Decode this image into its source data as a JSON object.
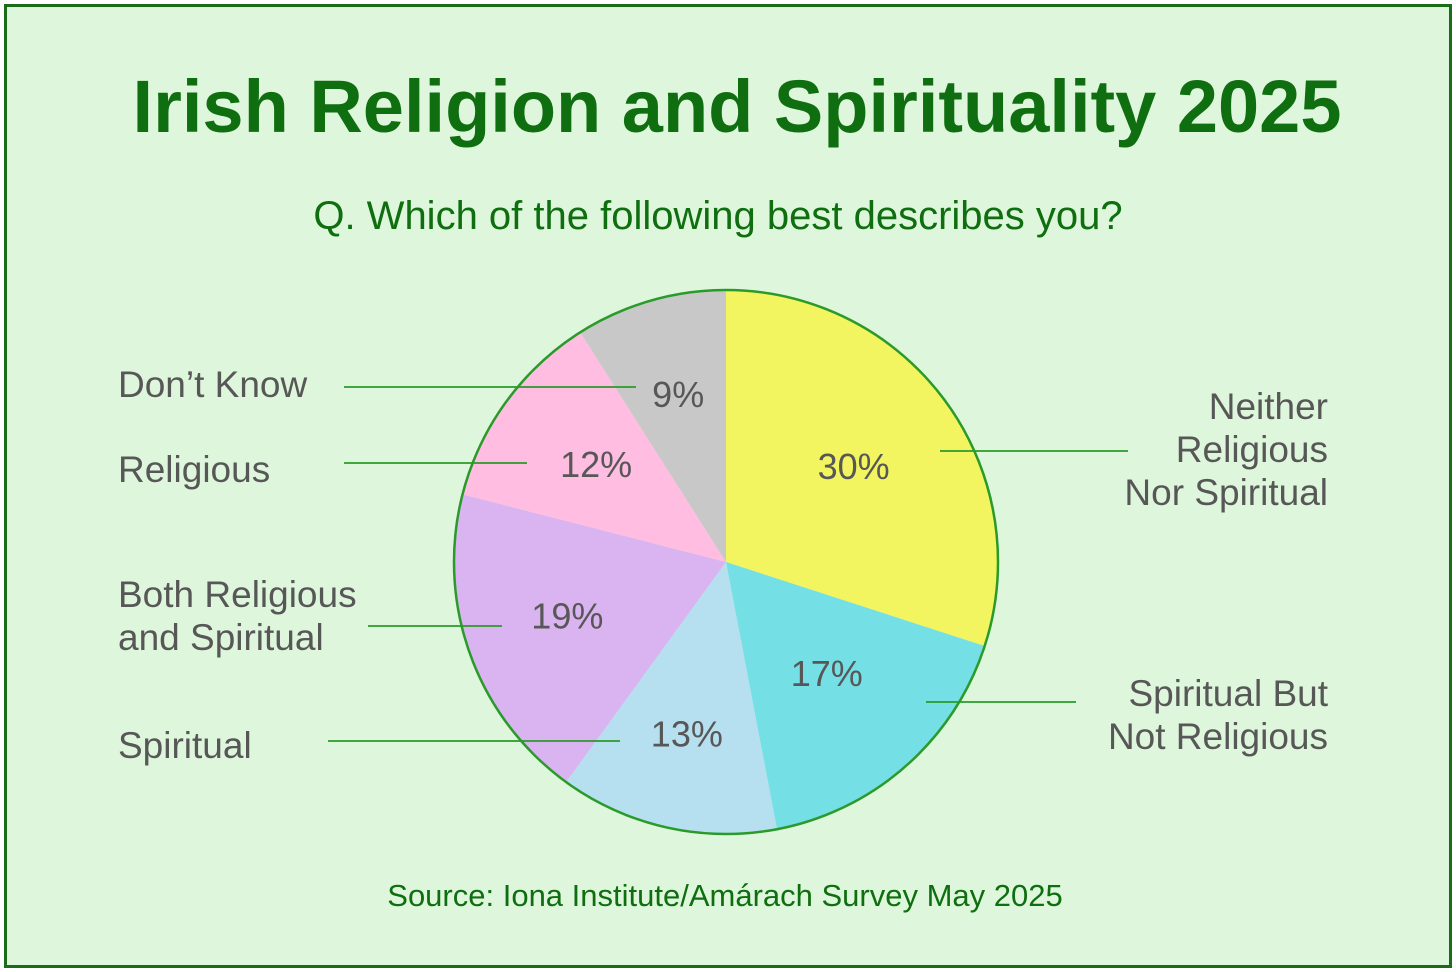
{
  "title": "Irish Religion and Spirituality 2025",
  "subtitle": "Q. Which of the following best describes you?",
  "source": "Source: Iona Institute/Amárach Survey May 2025",
  "colors": {
    "background": "#def7dc",
    "border": "#1a6b1a",
    "title": "#0f6e0f",
    "label_text": "#575757",
    "leader_line": "#2a9a2a"
  },
  "chart_data": {
    "type": "pie",
    "title": "Irish Religion and Spirituality 2025",
    "subtitle": "Q. Which of the following best describes you?",
    "start_angle": "12 o'clock",
    "direction": "clockwise",
    "slices": [
      {
        "label": "Neither Religious Nor Spiritual",
        "value": 30,
        "value_label": "30%",
        "color": "#f2f560",
        "label_side": "right"
      },
      {
        "label": "Spiritual But Not Religious",
        "value": 17,
        "value_label": "17%",
        "color": "#74dfe4",
        "label_side": "right"
      },
      {
        "label": "Spiritual",
        "value": 13,
        "value_label": "13%",
        "color": "#b6e0f0",
        "label_side": "left"
      },
      {
        "label": "Both Religious and Spiritual",
        "value": 19,
        "value_label": "19%",
        "color": "#d9b4f0",
        "label_side": "left"
      },
      {
        "label": "Religious",
        "value": 12,
        "value_label": "12%",
        "color": "#ffbde2",
        "label_side": "left"
      },
      {
        "label": "Don’t Know",
        "value": 9,
        "value_label": "9%",
        "color": "#c8c8c8",
        "label_side": "left"
      }
    ]
  },
  "labels": {
    "neither_lines": [
      "Neither",
      "Religious",
      "Nor Spiritual"
    ],
    "spiritual_but_lines": [
      "Spiritual But",
      "Not Religious"
    ],
    "spiritual_lines": [
      "Spiritual"
    ],
    "both_lines": [
      "Both Religious",
      "and Spiritual"
    ],
    "religious_lines": [
      "Religious"
    ],
    "dont_know_lines": [
      "Don’t Know"
    ]
  }
}
